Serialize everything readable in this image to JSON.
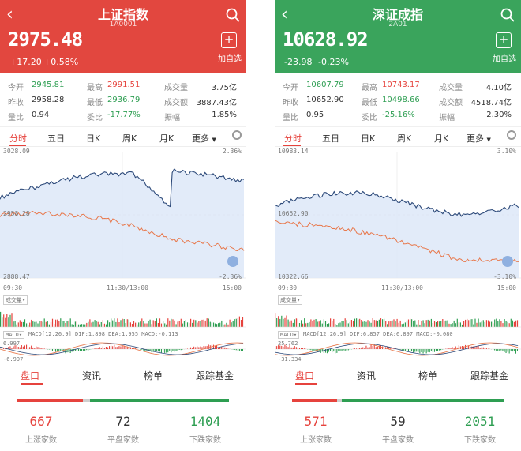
{
  "panels": [
    {
      "header_color": "#e2473f",
      "title": "上证指数",
      "code": "1A0001",
      "price": "2975.48",
      "change": "+17.20",
      "change_pct": "+0.58%",
      "add_label": "加自选",
      "stats": {
        "open_label": "今开",
        "open": "2945.81",
        "prev_label": "昨收",
        "prev": "2958.28",
        "vr_label": "量比",
        "vr": "0.94",
        "high_label": "最高",
        "high": "2991.51",
        "low_label": "最低",
        "low": "2936.79",
        "cr_label": "委比",
        "cr": "-17.77%",
        "vol_label": "成交量",
        "vol": "3.75亿",
        "amt_label": "成交额",
        "amt": "3887.43亿",
        "amp_label": "振幅",
        "amp": "1.85%"
      },
      "tabs": [
        "分时",
        "五日",
        "日K",
        "周K",
        "月K",
        "更多"
      ],
      "chart": {
        "top": "3028.09",
        "mid": "2958.28",
        "bottom": "2888.47",
        "top_pct": "2.36%",
        "bottom_pct": "-2.36%",
        "t_start": "09:30",
        "t_mid": "11:30/13:00",
        "t_end": "15:00",
        "vol_tag": "成交量",
        "macd_tag": "MACD",
        "macd_text": "MACD[12,26,9] DIF:1.898 DEA:1.955 MACD:-0.113",
        "macd_top": "6.997",
        "macd_bottom": "-6.997"
      },
      "bottom_tabs": [
        "盘口",
        "资讯",
        "榜单",
        "跟踪基金"
      ],
      "up_count": "667",
      "up_label": "上涨家数",
      "flat_count": "72",
      "flat_label": "平盘家数",
      "down_count": "1404",
      "down_label": "下跌家数"
    },
    {
      "header_color": "#3aa45c",
      "title": "深证成指",
      "code": "2A01",
      "price": "10628.92",
      "change": "-23.98",
      "change_pct": "-0.23%",
      "add_label": "加自选",
      "stats": {
        "open_label": "今开",
        "open": "10607.79",
        "prev_label": "昨收",
        "prev": "10652.90",
        "vr_label": "量比",
        "vr": "0.95",
        "high_label": "最高",
        "high": "10743.17",
        "low_label": "最低",
        "low": "10498.66",
        "cr_label": "委比",
        "cr": "-25.16%",
        "vol_label": "成交量",
        "vol": "4.10亿",
        "amt_label": "成交额",
        "amt": "4518.74亿",
        "amp_label": "振幅",
        "amp": "2.30%"
      },
      "tabs": [
        "分时",
        "五日",
        "日K",
        "周K",
        "月K",
        "更多"
      ],
      "chart": {
        "top": "10983.14",
        "mid": "10652.90",
        "bottom": "10322.66",
        "top_pct": "3.10%",
        "bottom_pct": "-3.10%",
        "t_start": "09:30",
        "t_mid": "11:30/13:00",
        "t_end": "15:00",
        "vol_tag": "成交量",
        "macd_tag": "MACD",
        "macd_text": "MACD[12,26,9] DIF:6.857 DEA:6.897 MACD:-0.080",
        "macd_top": "25.762",
        "macd_bottom": "-31.334"
      },
      "bottom_tabs": [
        "盘口",
        "资讯",
        "榜单",
        "跟踪基金"
      ],
      "up_count": "571",
      "up_label": "上涨家数",
      "flat_count": "59",
      "flat_label": "平盘家数",
      "down_count": "2051",
      "down_label": "下跌家数"
    }
  ]
}
